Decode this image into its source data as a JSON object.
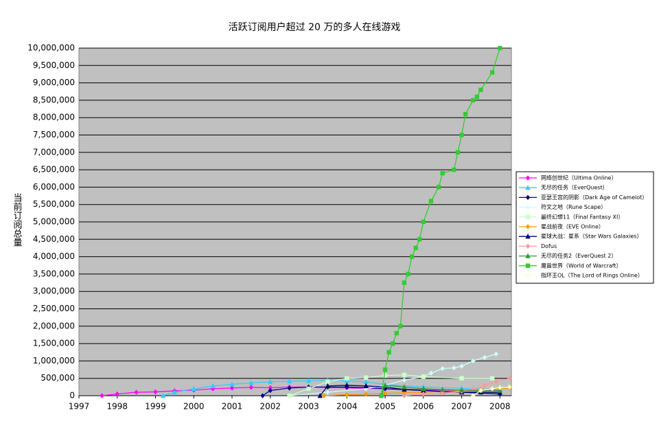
{
  "chart_data": {
    "type": "line",
    "title": "活跃订阅用户超过 20 万的多人在线游戏",
    "y_label": "当前订阅总量",
    "xlim": [
      1997,
      2008.3
    ],
    "xticks": [
      1997,
      1998,
      1999,
      2000,
      2001,
      2002,
      2003,
      2004,
      2005,
      2006,
      2007,
      2008
    ],
    "ylim": [
      0,
      10000000
    ],
    "yticks": [
      0,
      {
        "value": 500000,
        "label": "500,000"
      },
      {
        "value": 1000000,
        "label": "1,000,000"
      },
      {
        "value": 1500000,
        "label": "1,500,000"
      },
      {
        "value": 2000000,
        "label": "2,000,000"
      },
      {
        "value": 2500000,
        "label": "2,500,000"
      },
      {
        "value": 3000000,
        "label": "3,000,000"
      },
      {
        "value": 3500000,
        "label": "3,500,000"
      },
      {
        "value": 4000000,
        "label": "4,000,000"
      },
      {
        "value": 4500000,
        "label": "4,500,000"
      },
      {
        "value": 5000000,
        "label": "5,000,000"
      },
      {
        "value": 5500000,
        "label": "5,500,000"
      },
      {
        "value": 6000000,
        "label": "6,000,000"
      },
      {
        "value": 6500000,
        "label": "6,500,000"
      },
      {
        "value": 7000000,
        "label": "7,000,000"
      },
      {
        "value": 7500000,
        "label": "7,500,000"
      },
      {
        "value": 8000000,
        "label": "8,000,000"
      },
      {
        "value": 8500000,
        "label": "8,500,000"
      },
      {
        "value": 9000000,
        "label": "9,000,000"
      },
      {
        "value": 9500000,
        "label": "9,500,000"
      },
      {
        "value": 10000000,
        "label": "10,000,000"
      }
    ],
    "grid": true,
    "background": "#c0c0c0",
    "legend": "right",
    "series": [
      {
        "name": "网络创世纪（Ultima Online）",
        "color": "#ff00ff",
        "marker": "diamond",
        "x": [
          1997.6,
          1998,
          1998.5,
          1999,
          1999.5,
          2000,
          2000.5,
          2001,
          2001.5,
          2002,
          2002.5,
          2003,
          2004,
          2005,
          2006,
          2007,
          2008
        ],
        "values": [
          0,
          50000,
          100000,
          110000,
          140000,
          160000,
          200000,
          220000,
          240000,
          230000,
          250000,
          250000,
          225000,
          200000,
          175000,
          150000,
          135000
        ]
      },
      {
        "name": "无尽的任务（EverQuest）",
        "color": "#33ccff",
        "marker": "triangle",
        "x": [
          1999.2,
          1999.5,
          2000,
          2000.5,
          2001,
          2001.5,
          2002,
          2002.5,
          2003,
          2003.5,
          2004,
          2004.5,
          2005,
          2006,
          2007,
          2008
        ],
        "values": [
          0,
          100000,
          200000,
          280000,
          330000,
          370000,
          400000,
          420000,
          430000,
          450000,
          430000,
          400000,
          320000,
          250000,
          210000,
          180000
        ]
      },
      {
        "name": "亚瑟王宫的阴影（Dark Age of Camelot）",
        "color": "#000099",
        "marker": "diamond",
        "x": [
          2001.8,
          2002,
          2002.5,
          2003,
          2003.5,
          2004,
          2004.5,
          2005,
          2006,
          2007,
          2008
        ],
        "values": [
          0,
          150000,
          220000,
          250000,
          250000,
          250000,
          230000,
          200000,
          150000,
          100000,
          50000
        ]
      },
      {
        "name": "符文之地（Rune Scape）",
        "color": "#ccffff",
        "marker": "diamond",
        "x": [
          2002.5,
          2003.5,
          2004.5,
          2005,
          2005.5,
          2006,
          2006.2,
          2006.5,
          2006.8,
          2007,
          2007.3,
          2007.6,
          2007.9
        ],
        "values": [
          0,
          100000,
          200000,
          300000,
          450000,
          550000,
          650000,
          780000,
          800000,
          850000,
          1000000,
          1100000,
          1200000
        ]
      },
      {
        "name": "最终幻想11（Final Fantasy XI）",
        "color": "#ccffcc",
        "marker": "square",
        "x": [
          2002.5,
          2003,
          2003.5,
          2004,
          2004.5,
          2005,
          2005.5,
          2006,
          2007,
          2007.8
        ],
        "values": [
          0,
          200000,
          400000,
          500000,
          520000,
          580000,
          600000,
          550000,
          500000,
          500000
        ]
      },
      {
        "name": "星战前夜（EVE Online）",
        "color": "#ff9900",
        "marker": "diamond",
        "x": [
          2003.4,
          2004,
          2004.5,
          2005,
          2005.5,
          2006,
          2006.5,
          2007,
          2007.5,
          2008,
          2008.25
        ],
        "values": [
          0,
          30000,
          50000,
          70000,
          80000,
          100000,
          120000,
          150000,
          170000,
          200000,
          220000
        ]
      },
      {
        "name": "星球大战：星系（Star Wars Galaxies）",
        "color": "#000066",
        "marker": "triangle",
        "x": [
          2003.3,
          2003.5,
          2004,
          2004.5,
          2005,
          2005.5,
          2006,
          2006.5,
          2007,
          2007.5,
          2008
        ],
        "values": [
          0,
          280000,
          300000,
          280000,
          250000,
          180000,
          150000,
          120000,
          100000,
          100000,
          90000
        ]
      },
      {
        "name": "Dofus",
        "color": "#ff9999",
        "marker": "diamond",
        "x": [
          2005.5,
          2006,
          2006.5,
          2007,
          2007.3,
          2007.6,
          2007.9,
          2008.25
        ],
        "values": [
          0,
          50000,
          80000,
          120000,
          200000,
          300000,
          400000,
          500000
        ]
      },
      {
        "name": "无尽的任务2（EverQuest 2）",
        "color": "#339933",
        "marker": "triangle",
        "x": [
          2004.9,
          2005,
          2005.5,
          2006,
          2006.5,
          2007,
          2007.5,
          2008
        ],
        "values": [
          0,
          300000,
          250000,
          200000,
          175000,
          160000,
          150000,
          150000
        ]
      },
      {
        "name": "魔兽世界（World of Warcraft）",
        "color": "#33cc33",
        "marker": "square",
        "x": [
          2004.9,
          2005,
          2005.1,
          2005.2,
          2005.3,
          2005.4,
          2005.5,
          2005.6,
          2005.7,
          2005.8,
          2005.9,
          2006,
          2006.2,
          2006.4,
          2006.5,
          2006.8,
          2006.9,
          2007,
          2007.1,
          2007.3,
          2007.4,
          2007.5,
          2007.8,
          2008
        ],
        "values": [
          0,
          750000,
          1250000,
          1500000,
          1800000,
          2000000,
          3250000,
          3500000,
          4000000,
          4250000,
          4500000,
          5000000,
          5600000,
          6000000,
          6400000,
          6500000,
          7000000,
          7500000,
          8100000,
          8500000,
          8600000,
          8800000,
          9300000,
          10000000
        ]
      },
      {
        "name": "指环王OL（The Lord of Rings Online）",
        "color": "#ffffcc",
        "marker": "diamond",
        "x": [
          2007.3,
          2007.5,
          2007.8,
          2008,
          2008.25
        ],
        "values": [
          0,
          150000,
          200000,
          230000,
          250000
        ]
      }
    ]
  }
}
